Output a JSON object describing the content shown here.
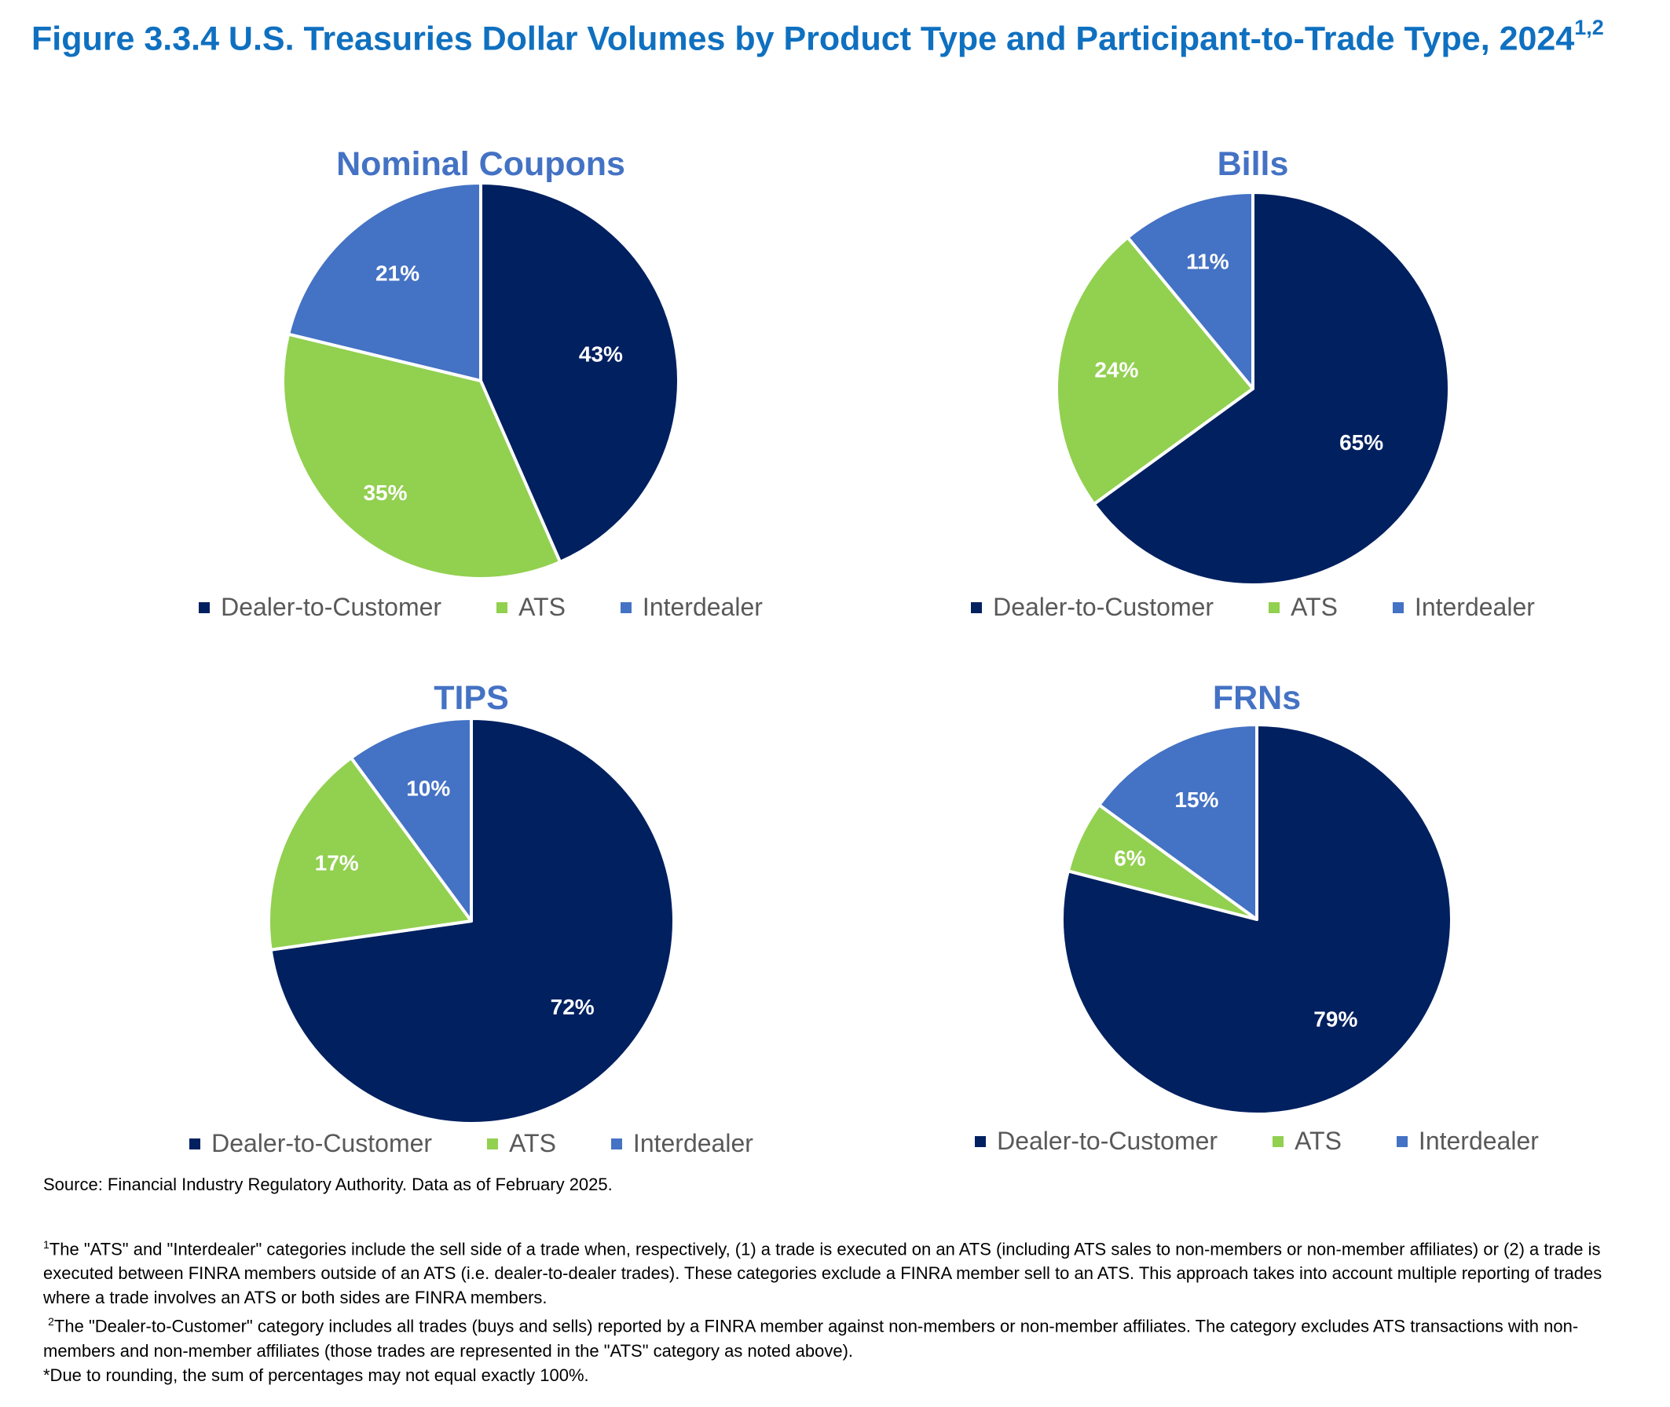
{
  "figure": {
    "title": "Figure 3.3.4 U.S. Treasuries Dollar Volumes by Product Type and Participant-to-Trade Type, 2024",
    "title_superscript": "1,2"
  },
  "colors": {
    "dealer_to_customer": "#002060",
    "ats": "#92d050",
    "interdealer": "#4472c4",
    "title": "#0f70c0"
  },
  "legend": {
    "items": [
      "Dealer-to-Customer",
      "ATS",
      "Interdealer"
    ]
  },
  "chart_data": [
    {
      "type": "pie",
      "title": "Nominal Coupons",
      "labels": [
        "Dealer-to-Customer",
        "ATS",
        "Interdealer"
      ],
      "values": [
        43,
        35,
        21
      ],
      "data_labels": [
        "43%",
        "35%",
        "21%"
      ]
    },
    {
      "type": "pie",
      "title": "Bills",
      "labels": [
        "Dealer-to-Customer",
        "ATS",
        "Interdealer"
      ],
      "values": [
        65,
        24,
        11
      ],
      "data_labels": [
        "65%",
        "24%",
        "11%"
      ]
    },
    {
      "type": "pie",
      "title": "TIPS",
      "labels": [
        "Dealer-to-Customer",
        "ATS",
        "Interdealer"
      ],
      "values": [
        72,
        17,
        10
      ],
      "data_labels": [
        "72%",
        "17%",
        "10%"
      ]
    },
    {
      "type": "pie",
      "title": "FRNs",
      "labels": [
        "Dealer-to-Customer",
        "ATS",
        "Interdealer"
      ],
      "values": [
        79,
        6,
        15
      ],
      "data_labels": [
        "79%",
        "6%",
        "15%"
      ]
    }
  ],
  "source": "Source: Financial Industry Regulatory Authority. Data as of February 2025.",
  "footnotes": {
    "note1_marker": "1",
    "note1": "The \"ATS\" and \"Interdealer\" categories include the sell side of a trade when, respectively, (1) a trade is executed on an ATS (including ATS sales to non-members or non-member affiliates) or (2) a trade is executed between FINRA members outside of an ATS (i.e. dealer-to-dealer trades). These categories exclude a FINRA member sell to an ATS. This approach takes into account multiple reporting of trades where a trade involves an ATS or both sides are FINRA members.",
    "note2_marker": "2",
    "note2": "The \"Dealer-to-Customer\" category includes all trades (buys and sells) reported by a FINRA member against non-members or non-member affiliates. The category excludes ATS transactions with non-members and non-member affiliates (those trades are represented in the \"ATS\" category as noted above).",
    "note3": "*Due to rounding, the sum of percentages may not equal exactly 100%."
  }
}
